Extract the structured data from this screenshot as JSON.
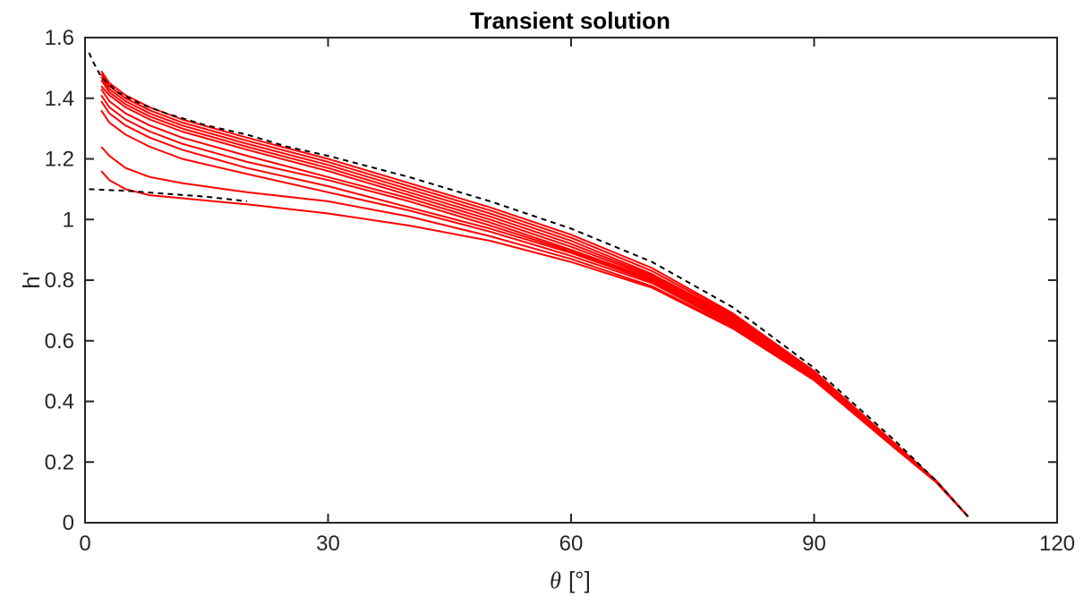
{
  "chart_data": {
    "type": "line",
    "title": "Transient solution",
    "xlabel_symbol": "θ",
    "xlabel_unit": "[°]",
    "ylabel": "h'",
    "xlim": [
      0,
      120
    ],
    "ylim": [
      0,
      1.6
    ],
    "xticks": [
      0,
      30,
      60,
      90,
      120
    ],
    "yticks": [
      0,
      0.2,
      0.4,
      0.6,
      0.8,
      1,
      1.2,
      1.4,
      1.6
    ],
    "xtick_labels": [
      "0",
      "30",
      "60",
      "90",
      "120"
    ],
    "ytick_labels": [
      "0",
      "0.2",
      "0.4",
      "0.6",
      "0.8",
      "1",
      "1.2",
      "1.4",
      "1.6"
    ],
    "grid": false,
    "colors": {
      "transient": "#ff0000",
      "bounds": "#000000",
      "axes": "#262626"
    },
    "bounds": [
      {
        "style": "dashed",
        "x": [
          0.5,
          1,
          2,
          4,
          7,
          10,
          15,
          20,
          25,
          30,
          40,
          50,
          60,
          70,
          80,
          90,
          100,
          105,
          109
        ],
        "y": [
          1.55,
          1.52,
          1.47,
          1.42,
          1.38,
          1.35,
          1.31,
          1.28,
          1.24,
          1.21,
          1.14,
          1.06,
          0.97,
          0.86,
          0.71,
          0.51,
          0.27,
          0.14,
          0.02
        ]
      },
      {
        "style": "dashed",
        "x": [
          0.5,
          5,
          10,
          15,
          20
        ],
        "y": [
          1.1,
          1.095,
          1.085,
          1.075,
          1.06
        ]
      }
    ],
    "series": [
      {
        "x": [
          2,
          3,
          5,
          8,
          12,
          20,
          30,
          40,
          50,
          60,
          70,
          80,
          90,
          100,
          105,
          109
        ],
        "y": [
          1.49,
          1.45,
          1.41,
          1.37,
          1.33,
          1.27,
          1.2,
          1.12,
          1.04,
          0.95,
          0.84,
          0.69,
          0.5,
          0.26,
          0.14,
          0.02
        ]
      },
      {
        "x": [
          2,
          3,
          5,
          8,
          12,
          20,
          30,
          40,
          50,
          60,
          70,
          80,
          90,
          100,
          105,
          109
        ],
        "y": [
          1.48,
          1.44,
          1.4,
          1.36,
          1.32,
          1.26,
          1.19,
          1.11,
          1.03,
          0.94,
          0.83,
          0.685,
          0.5,
          0.26,
          0.14,
          0.02
        ]
      },
      {
        "x": [
          2,
          3,
          5,
          8,
          12,
          20,
          30,
          40,
          50,
          60,
          70,
          80,
          90,
          100,
          105,
          109
        ],
        "y": [
          1.47,
          1.43,
          1.39,
          1.35,
          1.31,
          1.25,
          1.18,
          1.1,
          1.02,
          0.93,
          0.82,
          0.68,
          0.495,
          0.26,
          0.14,
          0.02
        ]
      },
      {
        "x": [
          2,
          3,
          5,
          8,
          12,
          20,
          30,
          40,
          50,
          60,
          70,
          80,
          90,
          100,
          105,
          109
        ],
        "y": [
          1.46,
          1.42,
          1.38,
          1.34,
          1.3,
          1.24,
          1.17,
          1.09,
          1.01,
          0.92,
          0.815,
          0.675,
          0.49,
          0.255,
          0.14,
          0.02
        ]
      },
      {
        "x": [
          2,
          3,
          5,
          8,
          12,
          20,
          30,
          40,
          50,
          60,
          70,
          80,
          90,
          100,
          105,
          109
        ],
        "y": [
          1.44,
          1.41,
          1.37,
          1.33,
          1.29,
          1.23,
          1.16,
          1.08,
          1.0,
          0.91,
          0.81,
          0.67,
          0.49,
          0.255,
          0.14,
          0.02
        ]
      },
      {
        "x": [
          2,
          3,
          5,
          8,
          12,
          20,
          30,
          40,
          50,
          60,
          70,
          80,
          90,
          100,
          105,
          109
        ],
        "y": [
          1.43,
          1.39,
          1.35,
          1.31,
          1.27,
          1.21,
          1.14,
          1.07,
          0.99,
          0.9,
          0.805,
          0.665,
          0.485,
          0.255,
          0.14,
          0.02
        ]
      },
      {
        "x": [
          2,
          3,
          5,
          8,
          12,
          20,
          30,
          40,
          50,
          60,
          70,
          80,
          90,
          100,
          105,
          109
        ],
        "y": [
          1.41,
          1.37,
          1.33,
          1.29,
          1.25,
          1.19,
          1.13,
          1.06,
          0.98,
          0.895,
          0.8,
          0.66,
          0.48,
          0.25,
          0.14,
          0.02
        ]
      },
      {
        "x": [
          2,
          3,
          5,
          8,
          12,
          20,
          30,
          40,
          50,
          60,
          70,
          80,
          90,
          100,
          105,
          109
        ],
        "y": [
          1.39,
          1.35,
          1.31,
          1.27,
          1.23,
          1.17,
          1.11,
          1.04,
          0.97,
          0.89,
          0.795,
          0.655,
          0.48,
          0.25,
          0.14,
          0.02
        ]
      },
      {
        "x": [
          2,
          3,
          5,
          8,
          12,
          20,
          30,
          40,
          50,
          60,
          70,
          80,
          90,
          100,
          105,
          109
        ],
        "y": [
          1.36,
          1.32,
          1.28,
          1.24,
          1.2,
          1.15,
          1.09,
          1.03,
          0.96,
          0.88,
          0.79,
          0.65,
          0.475,
          0.25,
          0.14,
          0.02
        ]
      },
      {
        "x": [
          2,
          3,
          5,
          8,
          12,
          20,
          30,
          40,
          50,
          60,
          70,
          80,
          90,
          100,
          105,
          109
        ],
        "y": [
          1.24,
          1.21,
          1.17,
          1.14,
          1.12,
          1.09,
          1.06,
          1.01,
          0.945,
          0.87,
          0.78,
          0.645,
          0.47,
          0.245,
          0.135,
          0.02
        ]
      },
      {
        "x": [
          2,
          3,
          5,
          8,
          12,
          20,
          30,
          40,
          50,
          60,
          70,
          80,
          90,
          100,
          105,
          109
        ],
        "y": [
          1.16,
          1.13,
          1.1,
          1.08,
          1.07,
          1.05,
          1.02,
          0.98,
          0.93,
          0.86,
          0.775,
          0.64,
          0.47,
          0.245,
          0.135,
          0.02
        ]
      }
    ]
  }
}
